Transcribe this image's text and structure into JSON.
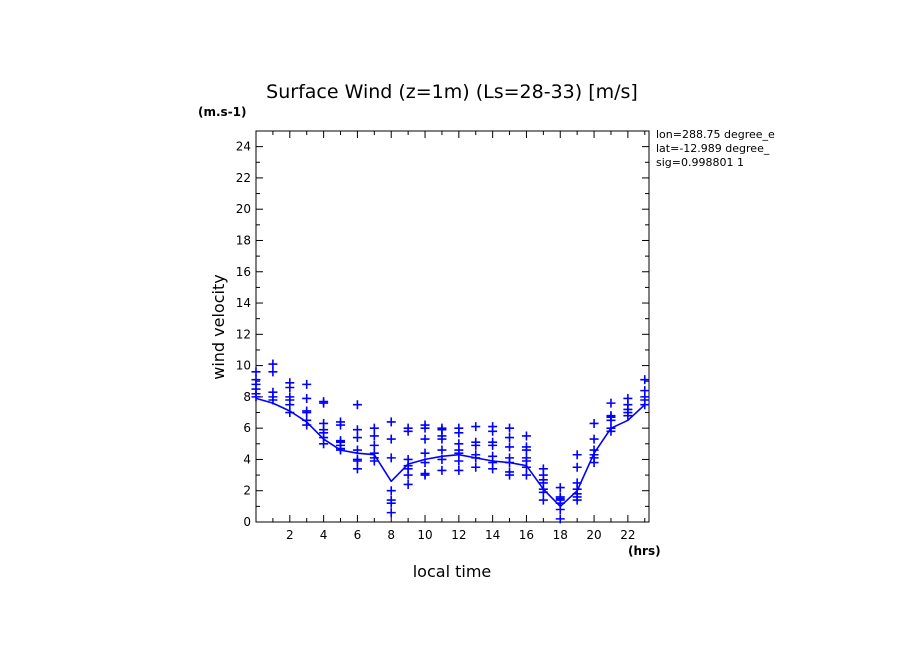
{
  "chart_data": {
    "type": "scatter",
    "title": "Surface Wind (z=1m) (Ls=28-33) [m/s]",
    "y_unit": "(m.s-1)",
    "x_unit": "(hrs)",
    "xlabel": "local time",
    "ylabel": "wind velocity",
    "xlim": [
      0,
      23.25
    ],
    "ylim": [
      0,
      25
    ],
    "x_ticks": [
      2,
      4,
      6,
      8,
      10,
      12,
      14,
      16,
      18,
      20,
      22
    ],
    "y_ticks": [
      0,
      2,
      4,
      6,
      8,
      10,
      12,
      14,
      16,
      18,
      20,
      22,
      24
    ],
    "info_lines": [
      "lon=288.75 degree_e",
      "lat=-12.989 degree_",
      "sig=0.998801 1"
    ],
    "color": "#0000ff",
    "series": [
      {
        "type": "line",
        "x": [
          0,
          1,
          2,
          3,
          4,
          5,
          6,
          7,
          8,
          9,
          10,
          11,
          12,
          13,
          14,
          15,
          16,
          17,
          18,
          19,
          20,
          21,
          22,
          23
        ],
        "values": [
          7.9,
          7.6,
          7.1,
          6.4,
          5.3,
          4.6,
          4.4,
          4.3,
          2.6,
          3.7,
          4.0,
          4.2,
          4.3,
          4.1,
          3.9,
          3.8,
          3.6,
          2.1,
          1.0,
          2.0,
          4.4,
          6.0,
          6.5,
          7.5
        ]
      },
      {
        "type": "scatter",
        "marker": "+",
        "points": [
          [
            0,
            8.0
          ],
          [
            0,
            8.2
          ],
          [
            0,
            8.5
          ],
          [
            0,
            8.8
          ],
          [
            0,
            9.1
          ],
          [
            0,
            9.6
          ],
          [
            1,
            7.8
          ],
          [
            1,
            8.0
          ],
          [
            1,
            8.3
          ],
          [
            1,
            9.6
          ],
          [
            1,
            10.1
          ],
          [
            2,
            7.0
          ],
          [
            2,
            7.5
          ],
          [
            2,
            7.8
          ],
          [
            2,
            8.0
          ],
          [
            2,
            8.6
          ],
          [
            2,
            8.9
          ],
          [
            3,
            6.2
          ],
          [
            3,
            6.5
          ],
          [
            3,
            7.0
          ],
          [
            3,
            7.1
          ],
          [
            3,
            7.9
          ],
          [
            3,
            8.8
          ],
          [
            4,
            5.0
          ],
          [
            4,
            5.4
          ],
          [
            4,
            5.7
          ],
          [
            4,
            5.9
          ],
          [
            4,
            6.3
          ],
          [
            4,
            7.6
          ],
          [
            4,
            7.7
          ],
          [
            5,
            4.6
          ],
          [
            5,
            4.7
          ],
          [
            5,
            4.9
          ],
          [
            5,
            5.1
          ],
          [
            5,
            5.2
          ],
          [
            5,
            6.2
          ],
          [
            5,
            6.4
          ],
          [
            6,
            3.4
          ],
          [
            6,
            3.9
          ],
          [
            6,
            4.0
          ],
          [
            6,
            4.6
          ],
          [
            6,
            5.4
          ],
          [
            6,
            5.9
          ],
          [
            6,
            7.5
          ],
          [
            7,
            3.9
          ],
          [
            7,
            4.1
          ],
          [
            7,
            4.4
          ],
          [
            7,
            4.9
          ],
          [
            7,
            5.5
          ],
          [
            7,
            6.0
          ],
          [
            8,
            0.6
          ],
          [
            8,
            1.2
          ],
          [
            8,
            1.4
          ],
          [
            8,
            2.0
          ],
          [
            8,
            4.1
          ],
          [
            8,
            5.3
          ],
          [
            8,
            6.4
          ],
          [
            9,
            2.4
          ],
          [
            9,
            3.0
          ],
          [
            9,
            3.4
          ],
          [
            9,
            3.6
          ],
          [
            9,
            4.0
          ],
          [
            9,
            5.8
          ],
          [
            9,
            6.0
          ],
          [
            10,
            3.0
          ],
          [
            10,
            3.1
          ],
          [
            10,
            3.8
          ],
          [
            10,
            4.4
          ],
          [
            10,
            5.3
          ],
          [
            10,
            6.0
          ],
          [
            10,
            6.2
          ],
          [
            11,
            3.3
          ],
          [
            11,
            4.0
          ],
          [
            11,
            4.6
          ],
          [
            11,
            5.3
          ],
          [
            11,
            5.5
          ],
          [
            11,
            5.9
          ],
          [
            11,
            6.0
          ],
          [
            12,
            3.3
          ],
          [
            12,
            3.9
          ],
          [
            12,
            4.4
          ],
          [
            12,
            4.6
          ],
          [
            12,
            5.0
          ],
          [
            12,
            5.7
          ],
          [
            12,
            6.0
          ],
          [
            13,
            3.5
          ],
          [
            13,
            4.1
          ],
          [
            13,
            4.3
          ],
          [
            13,
            4.9
          ],
          [
            13,
            5.1
          ],
          [
            13,
            6.1
          ],
          [
            14,
            3.4
          ],
          [
            14,
            3.8
          ],
          [
            14,
            4.2
          ],
          [
            14,
            4.9
          ],
          [
            14,
            5.1
          ],
          [
            14,
            5.8
          ],
          [
            14,
            6.1
          ],
          [
            15,
            3.0
          ],
          [
            15,
            3.2
          ],
          [
            15,
            3.8
          ],
          [
            15,
            4.1
          ],
          [
            15,
            4.8
          ],
          [
            15,
            5.4
          ],
          [
            15,
            6.0
          ],
          [
            16,
            3.0
          ],
          [
            16,
            3.5
          ],
          [
            16,
            3.9
          ],
          [
            16,
            4.1
          ],
          [
            16,
            4.6
          ],
          [
            16,
            4.8
          ],
          [
            16,
            5.5
          ],
          [
            17,
            1.4
          ],
          [
            17,
            1.9
          ],
          [
            17,
            2.1
          ],
          [
            17,
            2.5
          ],
          [
            17,
            2.7
          ],
          [
            17,
            3.0
          ],
          [
            17,
            3.4
          ],
          [
            18,
            0.2
          ],
          [
            18,
            0.8
          ],
          [
            18,
            1.2
          ],
          [
            18,
            1.4
          ],
          [
            18,
            1.5
          ],
          [
            18,
            1.6
          ],
          [
            18,
            2.2
          ],
          [
            19,
            1.4
          ],
          [
            19,
            1.6
          ],
          [
            19,
            1.8
          ],
          [
            19,
            2.1
          ],
          [
            19,
            2.5
          ],
          [
            19,
            3.5
          ],
          [
            19,
            4.3
          ],
          [
            20,
            3.8
          ],
          [
            20,
            4.1
          ],
          [
            20,
            4.3
          ],
          [
            20,
            4.6
          ],
          [
            20,
            5.3
          ],
          [
            20,
            6.3
          ],
          [
            21,
            5.8
          ],
          [
            21,
            6.0
          ],
          [
            21,
            6.5
          ],
          [
            21,
            6.7
          ],
          [
            21,
            6.8
          ],
          [
            21,
            7.6
          ],
          [
            22,
            6.8
          ],
          [
            22,
            7.0
          ],
          [
            22,
            7.2
          ],
          [
            22,
            7.5
          ],
          [
            22,
            7.9
          ],
          [
            23,
            7.5
          ],
          [
            23,
            7.8
          ],
          [
            23,
            8.0
          ],
          [
            23,
            8.4
          ],
          [
            23,
            9.1
          ]
        ]
      }
    ]
  }
}
